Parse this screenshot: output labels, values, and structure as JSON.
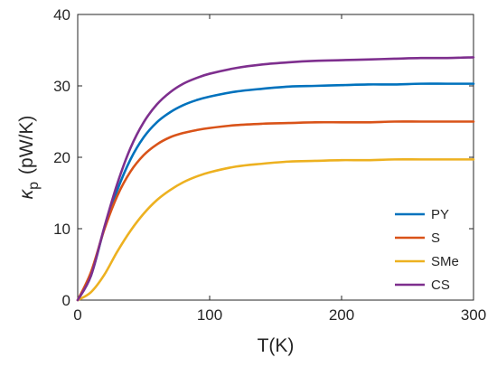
{
  "chart_data": {
    "type": "line",
    "xlabel": "T(K)",
    "ylabel": {
      "symbol": "κ",
      "subscript": "p",
      "units": "(pW/K)"
    },
    "xlim": [
      0,
      300
    ],
    "ylim": [
      0,
      40
    ],
    "xticks": [
      "0",
      "100",
      "200",
      "300"
    ],
    "yticks": [
      "0",
      "10",
      "20",
      "30",
      "40"
    ],
    "grid": false,
    "legend_position": "bottom-right",
    "x": [
      0,
      10,
      20,
      30,
      40,
      50,
      60,
      70,
      80,
      90,
      100,
      120,
      140,
      160,
      180,
      200,
      220,
      240,
      260,
      280,
      300
    ],
    "series": [
      {
        "name": "PY",
        "color": "#0072BD",
        "values": [
          0,
          3.4,
          9.9,
          15.4,
          19.7,
          22.8,
          24.9,
          26.3,
          27.3,
          28.0,
          28.5,
          29.2,
          29.6,
          29.9,
          30.0,
          30.1,
          30.2,
          30.2,
          30.3,
          30.3,
          30.3
        ]
      },
      {
        "name": "S",
        "color": "#D95319",
        "values": [
          0,
          3.9,
          9.8,
          14.6,
          18.0,
          20.3,
          21.8,
          22.8,
          23.4,
          23.8,
          24.1,
          24.5,
          24.7,
          24.8,
          24.9,
          24.9,
          24.9,
          25.0,
          25.0,
          25.0,
          25.0
        ]
      },
      {
        "name": "SMe",
        "color": "#EDB120",
        "values": [
          0,
          1.1,
          3.5,
          6.8,
          9.7,
          12.1,
          14.0,
          15.4,
          16.5,
          17.3,
          17.9,
          18.7,
          19.1,
          19.4,
          19.5,
          19.6,
          19.6,
          19.7,
          19.7,
          19.7,
          19.7
        ]
      },
      {
        "name": "CS",
        "color": "#7E2F8E",
        "values": [
          0,
          3.4,
          10.1,
          16.3,
          21.3,
          24.9,
          27.4,
          29.1,
          30.3,
          31.1,
          31.7,
          32.5,
          33.0,
          33.3,
          33.5,
          33.6,
          33.7,
          33.8,
          33.9,
          33.9,
          34.0
        ]
      }
    ]
  }
}
